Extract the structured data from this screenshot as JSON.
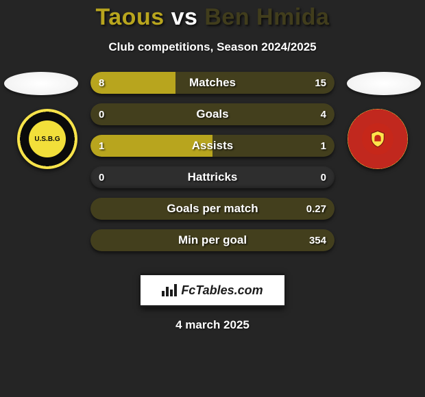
{
  "header": {
    "player_left": "Taous",
    "vs": "vs",
    "player_right": "Ben Hmida",
    "subtitle": "Club competitions, Season 2024/2025"
  },
  "colors": {
    "left": "#b8a51e",
    "right": "#433f1d",
    "track": "#2e2e2e",
    "title_left": "#b8a51e",
    "title_vs": "#ffffff",
    "title_right": "#413d1c"
  },
  "stats": [
    {
      "label": "Matches",
      "left_txt": "8",
      "right_txt": "15",
      "left_pct": 34.8,
      "right_pct": 65.2
    },
    {
      "label": "Goals",
      "left_txt": "0",
      "right_txt": "4",
      "left_pct": 0.0,
      "right_pct": 100.0
    },
    {
      "label": "Assists",
      "left_txt": "1",
      "right_txt": "1",
      "left_pct": 50.0,
      "right_pct": 50.0
    },
    {
      "label": "Hattricks",
      "left_txt": "0",
      "right_txt": "0",
      "left_pct": 0.0,
      "right_pct": 0.0
    },
    {
      "label": "Goals per match",
      "left_txt": "",
      "right_txt": "0.27",
      "left_pct": 0.0,
      "right_pct": 100.0
    },
    {
      "label": "Min per goal",
      "left_txt": "",
      "right_txt": "354",
      "left_pct": 0.0,
      "right_pct": 100.0
    }
  ],
  "footer": {
    "brand": "FcTables.com",
    "date": "4 march 2025"
  }
}
